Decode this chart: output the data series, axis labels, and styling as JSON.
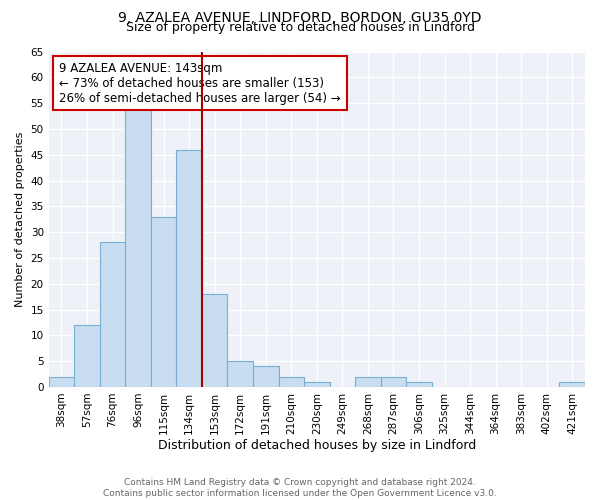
{
  "title": "9, AZALEA AVENUE, LINDFORD, BORDON, GU35 0YD",
  "subtitle": "Size of property relative to detached houses in Lindford",
  "xlabel": "Distribution of detached houses by size in Lindford",
  "ylabel": "Number of detached properties",
  "bar_labels": [
    "38sqm",
    "57sqm",
    "76sqm",
    "96sqm",
    "115sqm",
    "134sqm",
    "153sqm",
    "172sqm",
    "191sqm",
    "210sqm",
    "230sqm",
    "249sqm",
    "268sqm",
    "287sqm",
    "306sqm",
    "325sqm",
    "344sqm",
    "364sqm",
    "383sqm",
    "402sqm",
    "421sqm"
  ],
  "bar_values": [
    2,
    12,
    28,
    54,
    33,
    46,
    18,
    5,
    4,
    2,
    1,
    0,
    2,
    2,
    1,
    0,
    0,
    0,
    0,
    0,
    1
  ],
  "bar_color": "#c8ddf0",
  "bar_edge_color": "#7aafd4",
  "vline_index": 6,
  "vline_color": "#aa0000",
  "annotation_text": "9 AZALEA AVENUE: 143sqm\n← 73% of detached houses are smaller (153)\n26% of semi-detached houses are larger (54) →",
  "annotation_box_color": "#ffffff",
  "annotation_box_edge": "#cc0000",
  "ylim": [
    0,
    65
  ],
  "yticks": [
    0,
    5,
    10,
    15,
    20,
    25,
    30,
    35,
    40,
    45,
    50,
    55,
    60,
    65
  ],
  "footer_text": "Contains HM Land Registry data © Crown copyright and database right 2024.\nContains public sector information licensed under the Open Government Licence v3.0.",
  "title_fontsize": 10,
  "subtitle_fontsize": 9,
  "ylabel_fontsize": 8,
  "xlabel_fontsize": 9,
  "tick_fontsize": 7.5,
  "annotation_fontsize": 8.5,
  "footer_fontsize": 6.5,
  "bg_color": "#eef2f8"
}
